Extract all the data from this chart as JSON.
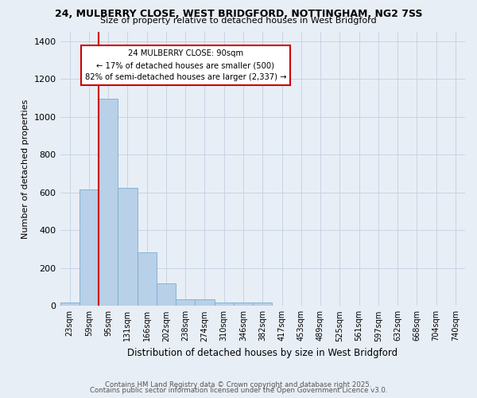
{
  "title_line1": "24, MULBERRY CLOSE, WEST BRIDGFORD, NOTTINGHAM, NG2 7SS",
  "title_line2": "Size of property relative to detached houses in West Bridgford",
  "xlabel": "Distribution of detached houses by size in West Bridgford",
  "ylabel": "Number of detached properties",
  "categories": [
    "23sqm",
    "59sqm",
    "95sqm",
    "131sqm",
    "166sqm",
    "202sqm",
    "238sqm",
    "274sqm",
    "310sqm",
    "346sqm",
    "382sqm",
    "417sqm",
    "453sqm",
    "489sqm",
    "525sqm",
    "561sqm",
    "597sqm",
    "632sqm",
    "668sqm",
    "704sqm",
    "740sqm"
  ],
  "values": [
    20,
    615,
    1095,
    625,
    285,
    120,
    35,
    35,
    20,
    20,
    20,
    0,
    0,
    0,
    0,
    0,
    0,
    0,
    0,
    0,
    0
  ],
  "bar_color": "#b8d0e8",
  "bar_edge_color": "#7aaecf",
  "grid_color": "#c8d4e4",
  "background_color": "#e8eef6",
  "vline_color": "#cc0000",
  "vline_x_idx": 2,
  "annotation_text": "24 MULBERRY CLOSE: 90sqm\n← 17% of detached houses are smaller (500)\n82% of semi-detached houses are larger (2,337) →",
  "annotation_box_color": "#ffffff",
  "annotation_box_edge": "#cc0000",
  "ylim": [
    0,
    1450
  ],
  "yticks": [
    0,
    200,
    400,
    600,
    800,
    1000,
    1200,
    1400
  ],
  "footer_line1": "Contains HM Land Registry data © Crown copyright and database right 2025.",
  "footer_line2": "Contains public sector information licensed under the Open Government Licence v3.0."
}
